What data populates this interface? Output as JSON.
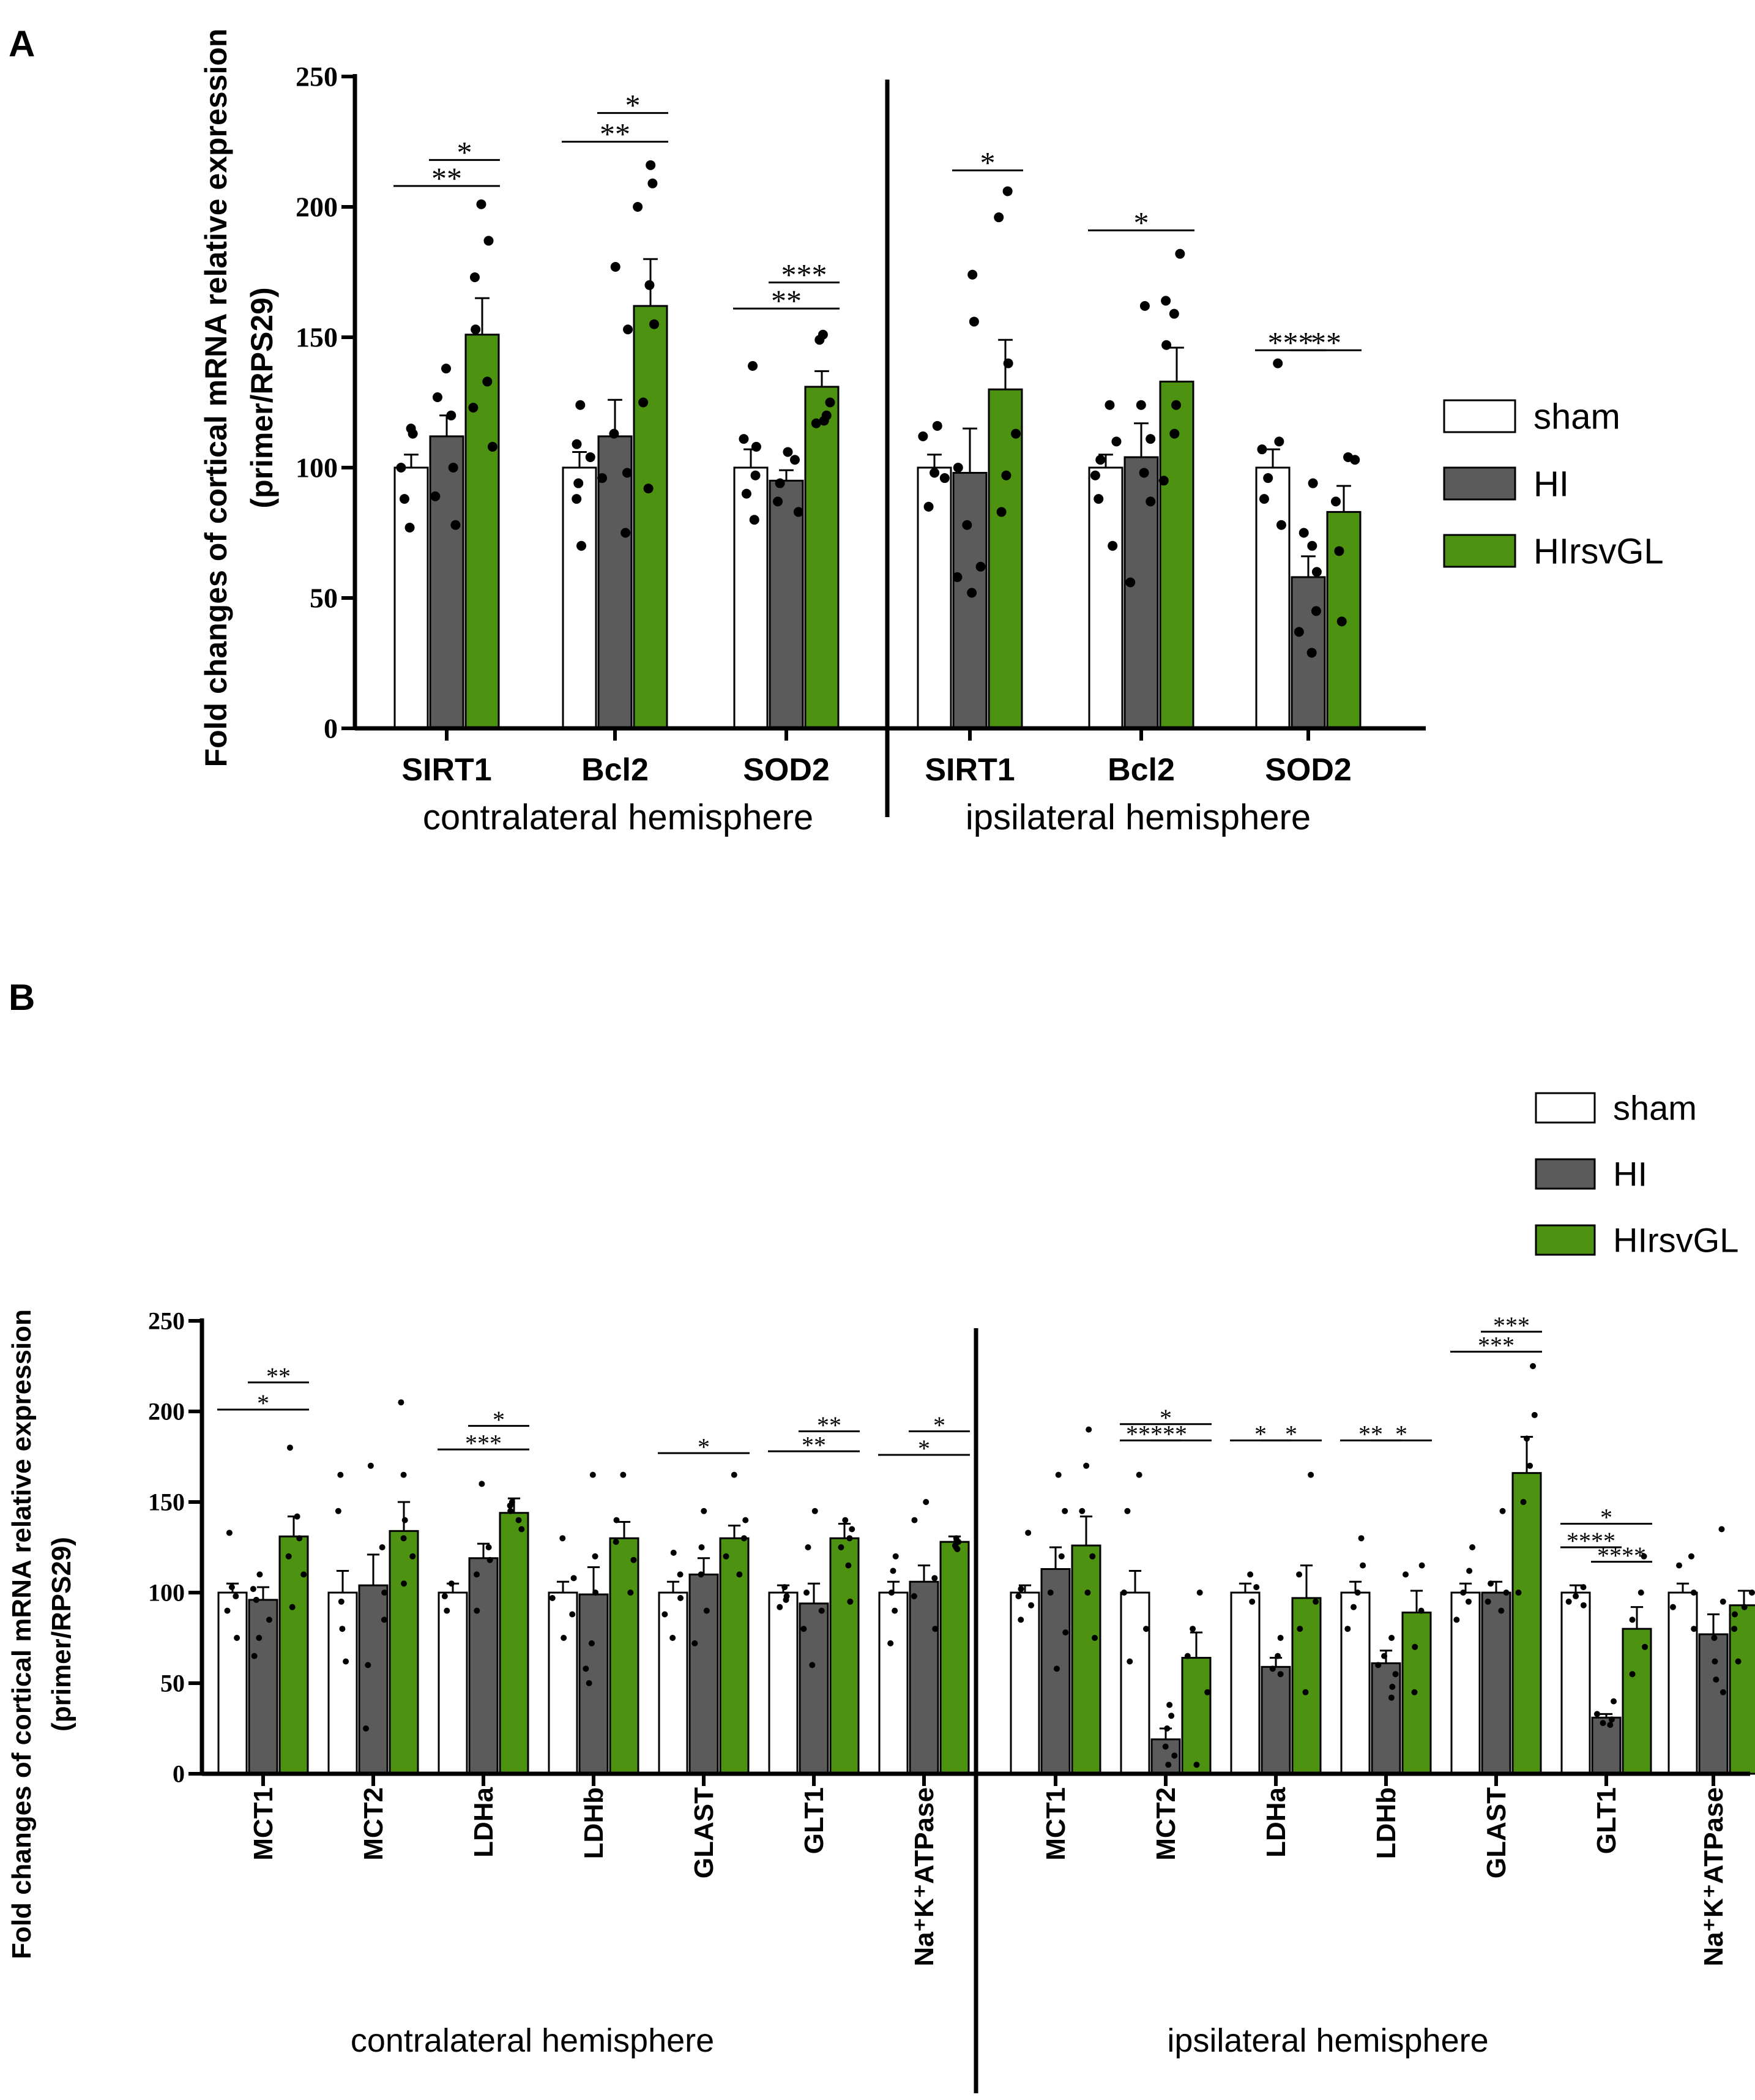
{
  "colors": {
    "sham": "#ffffff",
    "HI": "#5b5b5b",
    "HIrsvGL": "#4e9212"
  },
  "chart_data": [
    {
      "panel": "A",
      "type": "bar",
      "ylabel_line1": "Fold changes of cortical mRNA relative expression",
      "ylabel_line2": "(primer/RPS29)",
      "ylim": [
        0,
        250
      ],
      "yticks": [
        0,
        50,
        100,
        150,
        200,
        250
      ],
      "legend": [
        {
          "key": "sham",
          "label": "sham"
        },
        {
          "key": "HI",
          "label": "HI"
        },
        {
          "key": "HIrsvGL",
          "label": "HIrsvGL"
        }
      ],
      "groups": [
        {
          "label": "contralateral hemisphere",
          "categories": [
            "SIRT1",
            "Bcl2",
            "SOD2"
          ]
        },
        {
          "label": "ipsilateral hemisphere",
          "categories": [
            "SIRT1",
            "Bcl2",
            "SOD2"
          ]
        }
      ],
      "categories": [
        "SIRT1",
        "Bcl2",
        "SOD2",
        "SIRT1",
        "Bcl2",
        "SOD2"
      ],
      "series": [
        {
          "name": "sham",
          "values": [
            100,
            100,
            100,
            100,
            100,
            100
          ],
          "sem": [
            5,
            6,
            7,
            5,
            5,
            7
          ],
          "points": [
            [
              115,
              113,
              100,
              88,
              77
            ],
            [
              124,
              109,
              104,
              94,
              88,
              70
            ],
            [
              139,
              111,
              108,
              97,
              90,
              80
            ],
            [
              116,
              112,
              98,
              96,
              85
            ],
            [
              124,
              110,
              103,
              97,
              88,
              70
            ],
            [
              140,
              110,
              107,
              96,
              88,
              78
            ]
          ]
        },
        {
          "name": "HI",
          "values": [
            112,
            112,
            95,
            98,
            104,
            58
          ],
          "sem": [
            8,
            14,
            4,
            17,
            13,
            8
          ],
          "points": [
            [
              138,
              127,
              120,
              100,
              89,
              78
            ],
            [
              177,
              153,
              113,
              98,
              96,
              75
            ],
            [
              106,
              103,
              94,
              87,
              83
            ],
            [
              174,
              156,
              100,
              78,
              62,
              58,
              52
            ],
            [
              162,
              124,
              111,
              98,
              87,
              56
            ],
            [
              94,
              75,
              70,
              60,
              45,
              37,
              29
            ]
          ]
        },
        {
          "name": "HIrsvGL",
          "values": [
            151,
            162,
            131,
            130,
            133,
            83
          ],
          "sem": [
            14,
            18,
            6,
            19,
            13,
            10
          ],
          "points": [
            [
              201,
              187,
              173,
              153,
              133,
              123,
              108
            ],
            [
              216,
              209,
              200,
              170,
              155,
              125,
              92
            ],
            [
              151,
              149,
              125,
              120,
              118,
              117
            ],
            [
              206,
              196,
              140,
              113,
              97,
              83
            ],
            [
              182,
              164,
              159,
              147,
              124,
              113,
              95
            ],
            [
              104,
              103,
              87,
              68,
              41
            ]
          ]
        }
      ],
      "significance": [
        {
          "cat": 0,
          "from": "sham",
          "to": "HIrsvGL",
          "label": "**",
          "y": 208
        },
        {
          "cat": 0,
          "from": "HI",
          "to": "HIrsvGL",
          "label": "*",
          "y": 218
        },
        {
          "cat": 1,
          "from": "sham",
          "to": "HIrsvGL",
          "label": "**",
          "y": 225
        },
        {
          "cat": 1,
          "from": "HI",
          "to": "HIrsvGL",
          "label": "*",
          "y": 236
        },
        {
          "cat": 2,
          "from": "sham",
          "to": "HIrsvGL",
          "label": "**",
          "y": 161
        },
        {
          "cat": 2,
          "from": "HI",
          "to": "HIrsvGL",
          "label": "***",
          "y": 171
        },
        {
          "cat": 3,
          "from": "HI",
          "to": "HIrsvGL",
          "label": "*",
          "y": 214
        },
        {
          "cat": 4,
          "from": "sham",
          "to": "HIrsvGL",
          "label": "*",
          "y": 191
        },
        {
          "cat": 5,
          "from": "sham",
          "to": "HI",
          "label": "***",
          "y": 145
        },
        {
          "cat": 5,
          "from": "HI",
          "to": "HIrsvGL",
          "label": "**",
          "y": 145
        }
      ]
    },
    {
      "panel": "B",
      "type": "bar",
      "ylabel_line1": "Fold changes of cortical mRNA relative expression",
      "ylabel_line2": "(primer/RPS29)",
      "ylim": [
        0,
        250
      ],
      "yticks": [
        0,
        50,
        100,
        150,
        200,
        250
      ],
      "legend": [
        {
          "key": "sham",
          "label": "sham"
        },
        {
          "key": "HI",
          "label": "HI"
        },
        {
          "key": "HIrsvGL",
          "label": "HIrsvGL"
        }
      ],
      "groups": [
        {
          "label": "contralateral hemisphere",
          "categories": [
            "MCT1",
            "MCT2",
            "LDHa",
            "LDHb",
            "GLAST",
            "GLT1",
            "Na⁺K⁺ATPase"
          ]
        },
        {
          "label": "ipsilateral hemisphere",
          "categories": [
            "MCT1",
            "MCT2",
            "LDHa",
            "LDHb",
            "GLAST",
            "GLT1",
            "Na⁺K⁺ATPase"
          ]
        }
      ],
      "categories": [
        "MCT1",
        "MCT2",
        "LDHa",
        "LDHb",
        "GLAST",
        "GLT1",
        "Na⁺K⁺ATPase",
        "MCT1",
        "MCT2",
        "LDHa",
        "LDHb",
        "GLAST",
        "GLT1",
        "Na⁺K⁺ATPase"
      ],
      "series": [
        {
          "name": "sham",
          "values": [
            100,
            100,
            100,
            100,
            100,
            100,
            100,
            100,
            100,
            100,
            100,
            100,
            100,
            100
          ],
          "sem": [
            5,
            12,
            5,
            6,
            6,
            4,
            6,
            4,
            12,
            5,
            6,
            5,
            4,
            5
          ],
          "points": [
            [
              133,
              103,
              98,
              90,
              75
            ],
            [
              165,
              145,
              95,
              80,
              62
            ],
            [
              105,
              98,
              90
            ],
            [
              130,
              108,
              97,
              88,
              75
            ],
            [
              122,
              110,
              97,
              88,
              75
            ],
            [
              103,
              98,
              96,
              92
            ],
            [
              120,
              112,
              100,
              90,
              72
            ],
            [
              133,
              102,
              98,
              93,
              85
            ],
            [
              165,
              145,
              100,
              80,
              62
            ],
            [
              110,
              103,
              95
            ],
            [
              130,
              115,
              100,
              92,
              80
            ],
            [
              125,
              112,
              100,
              95,
              85
            ],
            [
              103,
              98,
              95,
              93
            ],
            [
              120,
              115,
              100,
              92,
              80
            ]
          ]
        },
        {
          "name": "HI",
          "values": [
            96,
            104,
            119,
            99,
            110,
            94,
            106,
            113,
            19,
            59,
            61,
            100,
            31,
            77
          ],
          "sem": [
            7,
            17,
            8,
            15,
            9,
            11,
            9,
            12,
            6,
            5,
            7,
            6,
            2,
            11
          ],
          "points": [
            [
              110,
              102,
              96,
              85,
              75,
              65
            ],
            [
              170,
              125,
              100,
              85,
              60,
              25
            ],
            [
              160,
              125,
              118,
              110,
              90
            ],
            [
              165,
              120,
              100,
              72,
              58,
              50
            ],
            [
              145,
              125,
              110,
              90,
              72
            ],
            [
              145,
              125,
              100,
              90,
              80,
              60
            ],
            [
              150,
              140,
              108,
              98,
              80
            ],
            [
              165,
              145,
              120,
              100,
              78,
              58
            ],
            [
              38,
              32,
              25,
              15,
              10,
              5
            ],
            [
              75,
              65,
              58,
              55
            ],
            [
              75,
              65,
              60,
              55,
              48,
              42
            ],
            [
              145,
              105,
              100,
              95,
              90
            ],
            [
              40,
              33,
              30,
              28,
              27
            ],
            [
              135,
              95,
              75,
              62,
              52,
              45
            ]
          ]
        },
        {
          "name": "HIrsvGL",
          "values": [
            131,
            134,
            144,
            130,
            130,
            130,
            128,
            126,
            64,
            97,
            89,
            166,
            80,
            93
          ],
          "sem": [
            11,
            16,
            8,
            9,
            7,
            8,
            3,
            16,
            14,
            18,
            12,
            20,
            12,
            8
          ],
          "points": [
            [
              180,
              142,
              130,
              120,
              110,
              92
            ],
            [
              205,
              165,
              140,
              130,
              120,
              105
            ],
            [
              150,
              148,
              145,
              140,
              135
            ],
            [
              165,
              140,
              128,
              118,
              100
            ],
            [
              165,
              140,
              130,
              120,
              110
            ],
            [
              140,
              135,
              130,
              125,
              115,
              95
            ],
            [
              130,
              128,
              126,
              125,
              124
            ],
            [
              190,
              170,
              145,
              120,
              100,
              75
            ],
            [
              100,
              80,
              65,
              45,
              5
            ],
            [
              165,
              110,
              95,
              80,
              45
            ],
            [
              115,
              110,
              90,
              70,
              45
            ],
            [
              225,
              198,
              185,
              170,
              150,
              100
            ],
            [
              120,
              100,
              85,
              70,
              55
            ],
            [
              100,
              92,
              88,
              80,
              62
            ]
          ]
        }
      ],
      "significance": [
        {
          "cat": 0,
          "from": "sham",
          "to": "HIrsvGL",
          "label": "*",
          "y": 201
        },
        {
          "cat": 0,
          "from": "HI",
          "to": "HIrsvGL",
          "label": "**",
          "y": 216
        },
        {
          "cat": 2,
          "from": "sham",
          "to": "HIrsvGL",
          "label": "***",
          "y": 179
        },
        {
          "cat": 2,
          "from": "HI",
          "to": "HIrsvGL",
          "label": "*",
          "y": 192
        },
        {
          "cat": 4,
          "from": "sham",
          "to": "HIrsvGL",
          "label": "*",
          "y": 177
        },
        {
          "cat": 5,
          "from": "sham",
          "to": "HIrsvGL",
          "label": "**",
          "y": 178
        },
        {
          "cat": 5,
          "from": "HI",
          "to": "HIrsvGL",
          "label": "**",
          "y": 189
        },
        {
          "cat": 6,
          "from": "sham",
          "to": "HIrsvGL",
          "label": "*",
          "y": 176
        },
        {
          "cat": 6,
          "from": "HI",
          "to": "HIrsvGL",
          "label": "*",
          "y": 189
        },
        {
          "cat": 8,
          "from": "sham",
          "to": "HI",
          "label": "****",
          "y": 184
        },
        {
          "cat": 8,
          "from": "HI",
          "to": "HIrsvGL",
          "label": "*",
          "y": 184
        },
        {
          "cat": 8,
          "from": "sham",
          "to": "HIrsvGL",
          "label": "*",
          "y": 193
        },
        {
          "cat": 9,
          "from": "sham",
          "to": "HI",
          "label": "*",
          "y": 184
        },
        {
          "cat": 9,
          "from": "HI",
          "to": "HIrsvGL",
          "label": "*",
          "y": 184
        },
        {
          "cat": 10,
          "from": "sham",
          "to": "HI",
          "label": "**",
          "y": 184
        },
        {
          "cat": 10,
          "from": "HI",
          "to": "HIrsvGL",
          "label": "*",
          "y": 184
        },
        {
          "cat": 11,
          "from": "sham",
          "to": "HIrsvGL",
          "label": "***",
          "y": 233
        },
        {
          "cat": 11,
          "from": "HI",
          "to": "HIrsvGL",
          "label": "***",
          "y": 244
        },
        {
          "cat": 12,
          "from": "sham",
          "to": "HI",
          "label": "****",
          "y": 125
        },
        {
          "cat": 12,
          "from": "sham",
          "to": "HIrsvGL",
          "label": "*",
          "y": 138
        },
        {
          "cat": 12,
          "from": "HI",
          "to": "HIrsvGL",
          "label": "****",
          "y": 117
        }
      ]
    }
  ]
}
